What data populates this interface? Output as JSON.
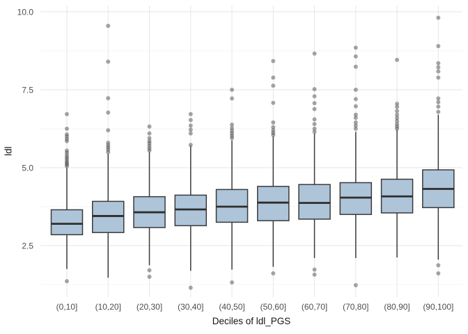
{
  "chart_data": {
    "type": "boxplot",
    "title": "",
    "xlabel": "Deciles of ldl_PGS",
    "ylabel": "ldl",
    "legend_position": "none",
    "grid": "major+minor horizontal, major vertical per category",
    "ylim": [
      0.8,
      10.2
    ],
    "ytick_values": [
      2.5,
      5.0,
      7.5,
      10.0
    ],
    "ytick_labels": [
      "2.5",
      "5.0",
      "7.5",
      "10.0"
    ],
    "yminor_values": [
      1.25,
      3.75,
      6.25,
      8.75
    ],
    "categories": [
      "(0,10]",
      "(10,20]",
      "(20,30]",
      "(30,40]",
      "(40,50]",
      "(50,60]",
      "(60,70]",
      "(70,80]",
      "(80,90]",
      "(90,100]"
    ],
    "boxes": [
      {
        "label": "(0,10]",
        "q1": 2.85,
        "median": 3.2,
        "q3": 3.65,
        "whisker_low": 1.75,
        "whisker_high": 5.0,
        "outliers": [
          5.05,
          5.1,
          5.15,
          5.2,
          5.27,
          5.33,
          5.4,
          5.48,
          5.55,
          5.85,
          5.92,
          6.0,
          6.07,
          6.25,
          6.72,
          1.36
        ]
      },
      {
        "label": "(10,20]",
        "q1": 2.92,
        "median": 3.45,
        "q3": 3.92,
        "whisker_low": 1.47,
        "whisker_high": 5.45,
        "outliers": [
          5.5,
          5.58,
          5.65,
          5.72,
          5.8,
          6.2,
          6.77,
          7.23,
          8.4,
          9.55
        ]
      },
      {
        "label": "(20,30]",
        "q1": 3.08,
        "median": 3.57,
        "q3": 4.07,
        "whisker_low": 1.87,
        "whisker_high": 5.5,
        "outliers": [
          5.55,
          5.62,
          5.7,
          5.78,
          5.85,
          5.95,
          6.1,
          6.32,
          1.71,
          1.5
        ]
      },
      {
        "label": "(30,40]",
        "q1": 3.14,
        "median": 3.66,
        "q3": 4.12,
        "whisker_low": 1.69,
        "whisker_high": 5.7,
        "outliers": [
          5.73,
          6.1,
          6.22,
          6.35,
          6.53,
          6.72,
          1.15
        ]
      },
      {
        "label": "(40,50]",
        "q1": 3.25,
        "median": 3.75,
        "q3": 4.3,
        "whisker_low": 1.73,
        "whisker_high": 5.88,
        "outliers": [
          5.95,
          6.02,
          6.1,
          6.18,
          6.27,
          6.38,
          7.22,
          7.5,
          1.32
        ]
      },
      {
        "label": "(50,60]",
        "q1": 3.3,
        "median": 3.88,
        "q3": 4.4,
        "whisker_low": 1.82,
        "whisker_high": 6.0,
        "outliers": [
          6.05,
          6.12,
          6.2,
          6.3,
          6.45,
          7.08,
          7.63,
          7.89,
          8.42,
          1.61
        ]
      },
      {
        "label": "(60,70]",
        "q1": 3.35,
        "median": 3.87,
        "q3": 4.46,
        "whisker_low": 2.1,
        "whisker_high": 6.1,
        "outliers": [
          6.15,
          6.25,
          6.4,
          6.55,
          6.88,
          7.07,
          7.29,
          7.52,
          8.66,
          1.73,
          1.57
        ]
      },
      {
        "label": "(70,80]",
        "q1": 3.5,
        "median": 4.04,
        "q3": 4.52,
        "whisker_low": 2.1,
        "whisker_high": 6.15,
        "outliers": [
          6.25,
          6.35,
          6.45,
          6.6,
          6.7,
          6.97,
          7.2,
          7.5,
          8.24,
          8.57,
          8.85,
          1.23
        ]
      },
      {
        "label": "(80,90]",
        "q1": 3.55,
        "median": 4.08,
        "q3": 4.63,
        "whisker_low": 2.12,
        "whisker_high": 6.21,
        "outliers": [
          6.25,
          6.32,
          6.4,
          6.5,
          6.6,
          6.7,
          6.82,
          6.95,
          7.05,
          8.46
        ]
      },
      {
        "label": "(90,100]",
        "q1": 3.72,
        "median": 4.32,
        "q3": 4.93,
        "whisker_low": 2.05,
        "whisker_high": 6.7,
        "outliers": [
          6.79,
          6.96,
          7.1,
          7.22,
          7.89,
          8.09,
          8.22,
          8.35,
          8.9,
          9.81,
          1.87,
          1.61
        ]
      }
    ],
    "style": {
      "box_fill": "#adc4d9",
      "box_stroke": "#3a3a3a",
      "median_stroke": "#2e2e2e",
      "whisker_stroke": "#3a3a3a",
      "outlier_fill": "#4c4c4c",
      "outlier_opacity": 0.5,
      "grid_major": "#e6e6e6",
      "grid_minor": "#f1f1f1",
      "tick_text": "#4d4d4d",
      "title_text": "#141414",
      "background": "#ffffff"
    }
  }
}
